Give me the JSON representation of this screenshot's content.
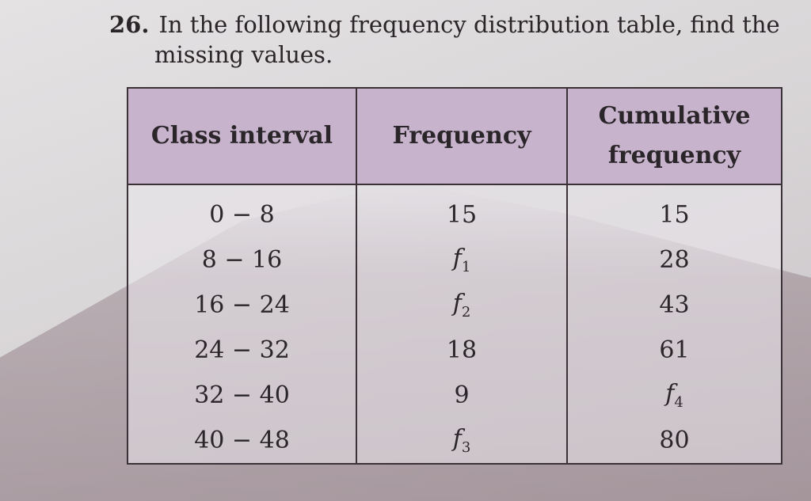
{
  "question": {
    "number": "26.",
    "line1": "In the following frequency distribution table, find the",
    "line2": "missing values."
  },
  "table": {
    "headers": [
      "Class interval",
      "Frequency",
      "Cumulative frequency"
    ],
    "header_color": "#c7b3cc",
    "rows": [
      {
        "class": "0 − 8",
        "freq": "15",
        "cum": "15"
      },
      {
        "class": "8 − 16",
        "freq": "f1",
        "cum": "28"
      },
      {
        "class": "16 − 24",
        "freq": "f2",
        "cum": "43"
      },
      {
        "class": "24 − 32",
        "freq": "18",
        "cum": "61"
      },
      {
        "class": "32 − 40",
        "freq": "9",
        "cum": "f4"
      },
      {
        "class": "40 − 48",
        "freq": "f3",
        "cum": "80"
      }
    ]
  }
}
